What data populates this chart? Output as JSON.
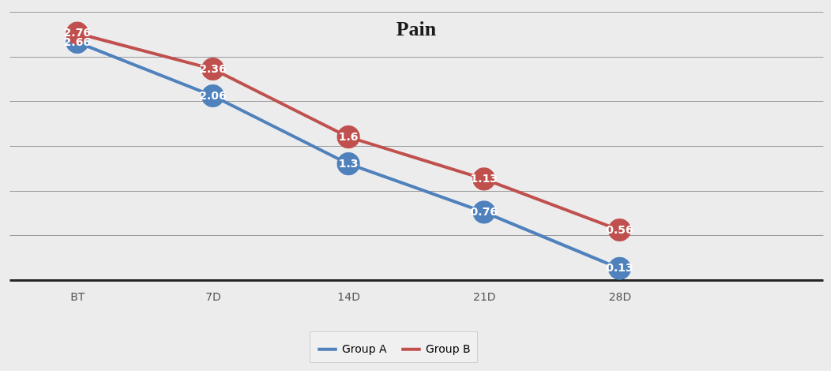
{
  "chart_data": {
    "type": "line",
    "title": "Pain",
    "categories": [
      "BT",
      "7D",
      "14D",
      "21D",
      "28D",
      null
    ],
    "series": [
      {
        "name": "Group A",
        "color": "#4f81bd",
        "values": [
          2.66,
          2.06,
          1.3,
          0.76,
          0.13,
          null
        ]
      },
      {
        "name": "Group B",
        "color": "#c0504d",
        "values": [
          2.76,
          2.36,
          1.6,
          1.13,
          0.56,
          null
        ]
      }
    ],
    "ylim": [
      0,
      3
    ],
    "yticks": [
      {
        "value": 0,
        "label": null
      },
      {
        "value": 0.5,
        "label": null
      },
      {
        "value": 1,
        "label": null
      },
      {
        "value": 1.5,
        "label": null
      },
      {
        "value": 2,
        "label": null
      },
      {
        "value": 2.5,
        "label": null
      },
      {
        "value": 3,
        "label": null
      }
    ],
    "tick_labels": "x",
    "grid": "y",
    "legend": "bottom",
    "marker": "circle",
    "line_style": "solid",
    "data_labels": true
  }
}
